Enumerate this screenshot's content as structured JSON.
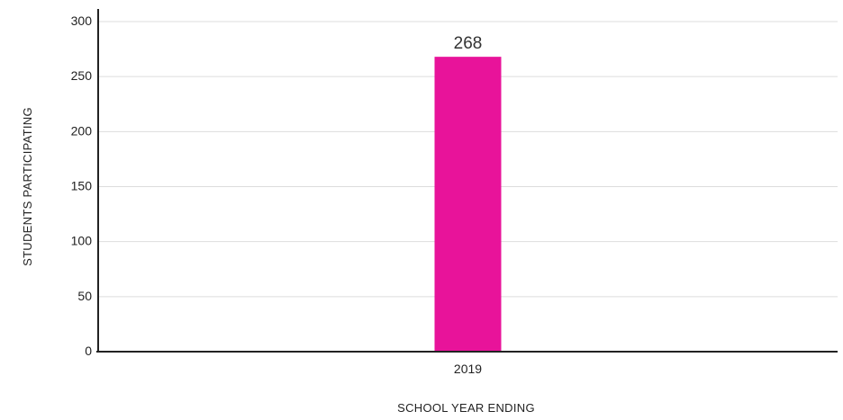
{
  "chart_data": {
    "type": "bar",
    "categories": [
      "2019"
    ],
    "values": [
      268
    ],
    "data_labels": [
      "268"
    ],
    "title": "",
    "xlabel": "SCHOOL YEAR ENDING",
    "ylabel": "STUDENTS PARTICIPATING",
    "ylim": [
      0,
      300
    ],
    "yticks": [
      0,
      50,
      100,
      150,
      200,
      250,
      300
    ],
    "ytick_labels": [
      "0",
      "50",
      "100",
      "150",
      "200",
      "250",
      "300"
    ],
    "grid": true,
    "legend": "none",
    "bar_color": "#e8139a"
  }
}
